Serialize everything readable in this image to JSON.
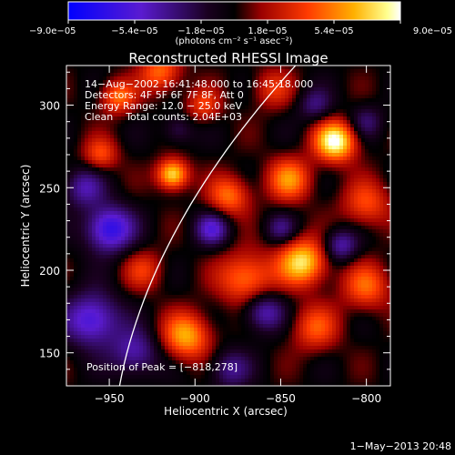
{
  "chart_data": {
    "type": "heatmap",
    "title": "Reconstructed RHESSI Image",
    "xlabel": "Heliocentric X (arcsec)",
    "ylabel": "Heliocentric Y (arcsec)",
    "xlim": [
      -975,
      -786
    ],
    "ylim": [
      130,
      324
    ],
    "x_ticks": [
      -950,
      -900,
      -850,
      -800
    ],
    "x_tick_labels": [
      "−950",
      "−900",
      "−850",
      "−800"
    ],
    "y_ticks": [
      150,
      200,
      250,
      300
    ],
    "y_tick_labels": [
      "150",
      "200",
      "250",
      "300"
    ],
    "colorbar": {
      "min": -9e-05,
      "max": 9e-05,
      "tick_values": [
        -9e-05,
        -5.4e-05,
        -1.8e-05,
        1.8e-05,
        5.4e-05,
        9e-05
      ],
      "tick_labels": [
        "−9.0e−05",
        "−5.4e−05",
        "−1.8e−05",
        "1.8e−05",
        "5.4e−05",
        "9.0e−05"
      ],
      "units": "(photons cm⁻² s⁻¹ asec⁻²)",
      "colors": [
        "#0000ff",
        "#6a1cc8",
        "#000000",
        "#b01010",
        "#ff4a00",
        "#ffb000",
        "#ffff80",
        "#ffffff"
      ]
    },
    "annotations": [
      "14−Aug−2002 16:41:48.000 to 16:45:18.000",
      "Detectors: 4F 5F 6F 7F 8F, Att 0",
      "Energy Range: 12.0 − 25.0 keV",
      "Clean    Total counts: 2.04E+03"
    ],
    "peak_label": "Position of Peak = [−818,278]",
    "peak": [
      -818,
      278
    ],
    "grid": false,
    "limb_curve": true
  },
  "footer": {
    "timestamp": "1−May−2013 20:48"
  }
}
